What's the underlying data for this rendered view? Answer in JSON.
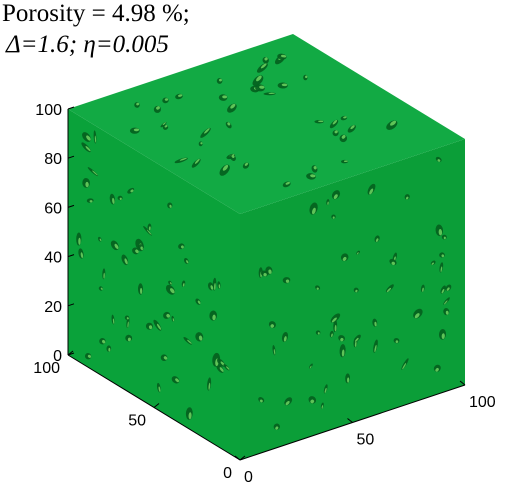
{
  "chart_data": {
    "type": "3d-isosurface",
    "title_line1": "Porosity = 4.98 %;",
    "title_line2": "Δ=1.6; η=0.005",
    "z_axis": {
      "ticks": [
        "0",
        "20",
        "40",
        "60",
        "80",
        "100"
      ],
      "range": [
        0,
        100
      ]
    },
    "y_axis": {
      "ticks": [
        "100",
        "50",
        "0"
      ],
      "range": [
        0,
        100
      ]
    },
    "x_axis": {
      "ticks": [
        "0",
        "50",
        "100"
      ],
      "range": [
        0,
        100
      ]
    },
    "colors": {
      "solid": "#0ca63e",
      "front_face": "#0aa23a",
      "right_face": "#0b9e38",
      "top_face": "#12aa44",
      "pore_dark": "#045f1e",
      "pore_light": "#7de36a",
      "axis": "#000000"
    }
  }
}
